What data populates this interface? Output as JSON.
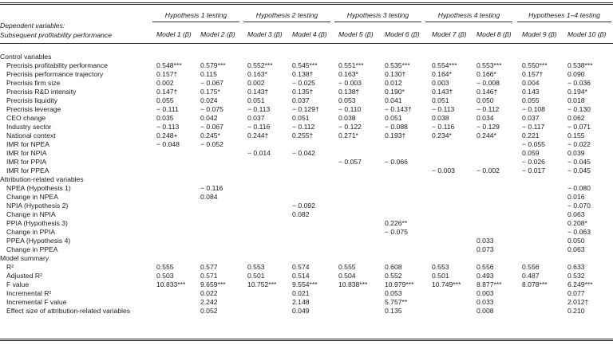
{
  "header": {
    "dependent_line1": "Dependent variables:",
    "dependent_line2": "Subsequent profitability performance",
    "hypotheses": [
      "Hypothesis 1 testing",
      "Hypothesis 2 testing",
      "Hypothesis 3 testing",
      "Hypothesis 4 testing",
      "Hypotheses 1–4 testing"
    ],
    "models": [
      "Model 1 (β)",
      "Model 2 (β)",
      "Model 3 (β)",
      "Model 4 (β)",
      "Model 5 (β)",
      "Model 6 (β)",
      "Model 7 (β)",
      "Model 8 (β)",
      "Model 9 (β)",
      "Model 10 (β)"
    ]
  },
  "rows": [
    {
      "type": "section",
      "label": "Control variables",
      "cells": [
        "",
        "",
        "",
        "",
        "",
        "",
        "",
        "",
        "",
        ""
      ]
    },
    {
      "type": "row",
      "label": "Precrisis profitability performance",
      "cells": [
        "0.548***",
        "0.579***",
        "0.552***",
        "0.545***",
        "0.551***",
        "0.535***",
        "0.554***",
        "0.553***",
        "0.550***",
        "0.538***"
      ]
    },
    {
      "type": "row",
      "label": "Precrisis performance trajectory",
      "cells": [
        "0.157†",
        "0.115",
        "0.163*",
        "0.138†",
        "0.163*",
        "0.130†",
        "0.164*",
        "0.166*",
        "0.157†",
        "0.090"
      ]
    },
    {
      "type": "row",
      "label": "Precrisis firm size",
      "cells": [
        "0.002",
        "− 0.067",
        "0.002",
        "− 0.025",
        "− 0.003",
        "0.012",
        "0.003",
        "− 0.008",
        "0.004",
        "− 0.036"
      ]
    },
    {
      "type": "row",
      "label": "Precrisis R&D intensity",
      "cells": [
        "0.147†",
        "0.175*",
        "0.143†",
        "0.135†",
        "0.138†",
        "0.190*",
        "0.143†",
        "0.146†",
        "0.143",
        "0.194*"
      ]
    },
    {
      "type": "row",
      "label": "Precrisis liquidity",
      "cells": [
        "0.055",
        "0.024",
        "0.051",
        "0.037",
        "0.053",
        "0.041",
        "0.051",
        "0.050",
        "0.055",
        "0.018"
      ]
    },
    {
      "type": "row",
      "label": "Precrisis leverage",
      "cells": [
        "− 0.111",
        "− 0.075",
        "− 0.113",
        "− 0.129†",
        "− 0.110",
        "− 0.143†",
        "− 0.113",
        "− 0.112",
        "− 0.108",
        "− 0.130"
      ]
    },
    {
      "type": "row",
      "label": "CEO change",
      "cells": [
        "0.035",
        "0.042",
        "0.037",
        "0.051",
        "0.038",
        "0.051",
        "0.038",
        "0.034",
        "0.037",
        "0.062"
      ]
    },
    {
      "type": "row",
      "label": "Industry sector",
      "cells": [
        "− 0.113",
        "− 0.067",
        "− 0.116",
        "− 0.112",
        "− 0.122",
        "− 0.088",
        "− 0.116",
        "− 0.129",
        "− 0.117",
        "− 0.071"
      ]
    },
    {
      "type": "row",
      "label": "National context",
      "cells": [
        "0.248+",
        "0.245*",
        "0.244†",
        "0.255†",
        "0.271*",
        "0.193†",
        "0.234*",
        "0.244*",
        "0.221",
        "0.155"
      ]
    },
    {
      "type": "row",
      "label": "IMR for NPEA",
      "cells": [
        "− 0.048",
        "− 0.052",
        "",
        "",
        "",
        "",
        "",
        "",
        "− 0.055",
        "− 0.022"
      ]
    },
    {
      "type": "row",
      "label": "IMR for NPIA",
      "cells": [
        "",
        "",
        "− 0.014",
        "− 0.042",
        "",
        "",
        "",
        "",
        "0.059",
        "0.039"
      ]
    },
    {
      "type": "row",
      "label": "IMR for PPIA",
      "cells": [
        "",
        "",
        "",
        "",
        "− 0.057",
        "− 0.066",
        "",
        "",
        "− 0.026",
        "− 0.045"
      ]
    },
    {
      "type": "row",
      "label": "IMR for PPEA",
      "cells": [
        "",
        "",
        "",
        "",
        "",
        "",
        "− 0.003",
        "− 0.002",
        "− 0.017",
        "− 0.045"
      ]
    },
    {
      "type": "section",
      "label": "Attribution-related variables",
      "cells": [
        "",
        "",
        "",
        "",
        "",
        "",
        "",
        "",
        "",
        ""
      ]
    },
    {
      "type": "row",
      "label": "NPEA (Hypothesis 1)",
      "cells": [
        "",
        "− 0.116",
        "",
        "",
        "",
        "",
        "",
        "",
        "",
        "− 0.080"
      ]
    },
    {
      "type": "row",
      "label": "Change in NPEA",
      "cells": [
        "",
        "0.084",
        "",
        "",
        "",
        "",
        "",
        "",
        "",
        "0.016"
      ]
    },
    {
      "type": "row",
      "label": "NPIA (Hypothesis 2)",
      "cells": [
        "",
        "",
        "",
        "− 0.092",
        "",
        "",
        "",
        "",
        "",
        "− 0.070"
      ]
    },
    {
      "type": "row",
      "label": "Change in NPIA",
      "cells": [
        "",
        "",
        "",
        "0.082",
        "",
        "",
        "",
        "",
        "",
        "0.063"
      ]
    },
    {
      "type": "row",
      "label": "PPIA (Hypothesis 3)",
      "cells": [
        "",
        "",
        "",
        "",
        "",
        "0.226**",
        "",
        "",
        "",
        "0.208*"
      ]
    },
    {
      "type": "row",
      "label": "Change in PPIA",
      "cells": [
        "",
        "",
        "",
        "",
        "",
        "− 0.075",
        "",
        "",
        "",
        "− 0.063"
      ]
    },
    {
      "type": "row",
      "label": "PPEA (Hypothesis 4)",
      "cells": [
        "",
        "",
        "",
        "",
        "",
        "",
        "",
        "0.033",
        "",
        "0.050"
      ]
    },
    {
      "type": "row",
      "label": "Change in PPEA",
      "cells": [
        "",
        "",
        "",
        "",
        "",
        "",
        "",
        "0.073",
        "",
        "0.063"
      ]
    },
    {
      "type": "section",
      "label": "Model summary",
      "cells": [
        "",
        "",
        "",
        "",
        "",
        "",
        "",
        "",
        "",
        ""
      ]
    },
    {
      "type": "row",
      "label": "R²",
      "cells": [
        "0.555",
        "0.577",
        "0.553",
        "0.574",
        "0.555",
        "0.608",
        "0.553",
        "0.556",
        "0.556",
        "0.633"
      ]
    },
    {
      "type": "row",
      "label": "Adjusted R²",
      "cells": [
        "0.503",
        "0.571",
        "0.501",
        "0.514",
        "0.504",
        "0.552",
        "0.501",
        "0.493",
        "0.487",
        "0.532"
      ]
    },
    {
      "type": "row",
      "label": "F value",
      "cells": [
        "10.833***",
        "9.659***",
        "10.752***",
        "9.554***",
        "10.838***",
        "10.979***",
        "10.749***",
        "8.877***",
        "8.078***",
        "6.249***"
      ]
    },
    {
      "type": "row",
      "label": "Incremental R²",
      "cells": [
        "",
        "0.022",
        "",
        "0.021",
        "",
        "0.053",
        "",
        "0.003",
        "",
        "0.077"
      ]
    },
    {
      "type": "row",
      "label": "Incremental F value",
      "cells": [
        "",
        "2.242",
        "",
        "2.148",
        "",
        "5.757**",
        "",
        "0.033",
        "",
        "2.012†"
      ]
    },
    {
      "type": "row",
      "label": "Effect size of attribution-related variables",
      "cells": [
        "",
        "0.052",
        "",
        "0.049",
        "",
        "0.135",
        "",
        "0.008",
        "",
        "0.210"
      ]
    }
  ]
}
